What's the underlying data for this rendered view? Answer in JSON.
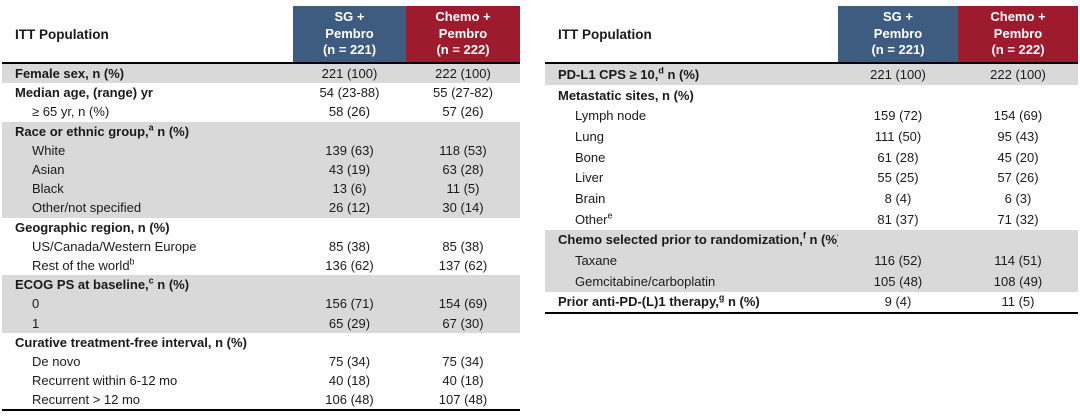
{
  "colors": {
    "header_blue": "#3D5C80",
    "header_red": "#9E1B2E",
    "row_shade": "#D9D9D9",
    "border_dark": "#000000",
    "text_dark": "#1A1A1A",
    "header_text": "#FFFFFF"
  },
  "tables": [
    {
      "name": "baseline-demographics",
      "corner_label": "ITT Population",
      "columns": [
        {
          "arm": "sg-pembro",
          "lines": [
            "SG +",
            "Pembro",
            "(n = 221)"
          ]
        },
        {
          "arm": "chemo-pembro",
          "lines": [
            "Chemo +",
            "Pembro",
            "(n = 222)"
          ]
        }
      ],
      "rows": [
        {
          "pre": "Female sex, n (%)",
          "sup": "",
          "post": "",
          "bold": true,
          "indent": false,
          "v1": "221 (100)",
          "v2": "222 (100)",
          "shade": true
        },
        {
          "pre": "Median age, (range) yr",
          "sup": "",
          "post": "",
          "bold": true,
          "indent": false,
          "v1": "54 (23-88)",
          "v2": "55 (27-82)",
          "shade": false
        },
        {
          "pre": "≥ 65 yr, n (%)",
          "sup": "",
          "post": "",
          "bold": false,
          "indent": true,
          "v1": "58 (26)",
          "v2": "57 (26)",
          "shade": false
        },
        {
          "pre": "Race or ethnic group,",
          "sup": "a",
          "post": " n (%)",
          "bold": true,
          "indent": false,
          "v1": "",
          "v2": "",
          "shade": true
        },
        {
          "pre": "White",
          "sup": "",
          "post": "",
          "bold": false,
          "indent": true,
          "v1": "139 (63)",
          "v2": "118 (53)",
          "shade": true
        },
        {
          "pre": "Asian",
          "sup": "",
          "post": "",
          "bold": false,
          "indent": true,
          "v1": "43 (19)",
          "v2": "63 (28)",
          "shade": true
        },
        {
          "pre": "Black",
          "sup": "",
          "post": "",
          "bold": false,
          "indent": true,
          "v1": "13 (6)",
          "v2": "11 (5)",
          "shade": true
        },
        {
          "pre": "Other/not specified",
          "sup": "",
          "post": "",
          "bold": false,
          "indent": true,
          "v1": "26 (12)",
          "v2": "30 (14)",
          "shade": true
        },
        {
          "pre": "Geographic region, n (%)",
          "sup": "",
          "post": "",
          "bold": true,
          "indent": false,
          "v1": "",
          "v2": "",
          "shade": false
        },
        {
          "pre": "US/Canada/Western Europe",
          "sup": "",
          "post": "",
          "bold": false,
          "indent": true,
          "v1": "85 (38)",
          "v2": "85 (38)",
          "shade": false
        },
        {
          "pre": "Rest of the world",
          "sup": "b",
          "post": "",
          "bold": false,
          "indent": true,
          "v1": "136 (62)",
          "v2": "137 (62)",
          "shade": false
        },
        {
          "pre": "ECOG PS at baseline,",
          "sup": "c",
          "post": " n (%)",
          "bold": true,
          "indent": false,
          "v1": "",
          "v2": "",
          "shade": true
        },
        {
          "pre": "0",
          "sup": "",
          "post": "",
          "bold": false,
          "indent": true,
          "v1": "156 (71)",
          "v2": "154 (69)",
          "shade": true
        },
        {
          "pre": "1",
          "sup": "",
          "post": "",
          "bold": false,
          "indent": true,
          "v1": "65 (29)",
          "v2": "67 (30)",
          "shade": true
        },
        {
          "pre": "Curative treatment-free interval, n (%)",
          "sup": "",
          "post": "",
          "bold": true,
          "indent": false,
          "v1": "",
          "v2": "",
          "shade": false
        },
        {
          "pre": "De novo",
          "sup": "",
          "post": "",
          "bold": false,
          "indent": true,
          "v1": "75 (34)",
          "v2": "75 (34)",
          "shade": false
        },
        {
          "pre": "Recurrent within 6-12 mo",
          "sup": "",
          "post": "",
          "bold": false,
          "indent": true,
          "v1": "40 (18)",
          "v2": "40 (18)",
          "shade": false
        },
        {
          "pre": "Recurrent > 12 mo",
          "sup": "",
          "post": "",
          "bold": false,
          "indent": true,
          "v1": "106 (48)",
          "v2": "107 (48)",
          "shade": false
        }
      ]
    },
    {
      "name": "baseline-disease-characteristics",
      "corner_label": "ITT Population",
      "columns": [
        {
          "arm": "sg-pembro",
          "lines": [
            "SG +",
            "Pembro",
            "(n = 221)"
          ]
        },
        {
          "arm": "chemo-pembro",
          "lines": [
            "Chemo +",
            "Pembro",
            "(n = 222)"
          ]
        }
      ],
      "rows": [
        {
          "pre": "PD-L1 CPS ≥ 10,",
          "sup": "d",
          "post": " n (%)",
          "bold": true,
          "indent": false,
          "v1": "221 (100)",
          "v2": "222 (100)",
          "shade": true
        },
        {
          "pre": "Metastatic sites, n (%)",
          "sup": "",
          "post": "",
          "bold": true,
          "indent": false,
          "v1": "",
          "v2": "",
          "shade": false
        },
        {
          "pre": "Lymph node",
          "sup": "",
          "post": "",
          "bold": false,
          "indent": true,
          "v1": "159 (72)",
          "v2": "154 (69)",
          "shade": false
        },
        {
          "pre": "Lung",
          "sup": "",
          "post": "",
          "bold": false,
          "indent": true,
          "v1": "111 (50)",
          "v2": "95 (43)",
          "shade": false
        },
        {
          "pre": "Bone",
          "sup": "",
          "post": "",
          "bold": false,
          "indent": true,
          "v1": "61 (28)",
          "v2": "45 (20)",
          "shade": false
        },
        {
          "pre": "Liver",
          "sup": "",
          "post": "",
          "bold": false,
          "indent": true,
          "v1": "55 (25)",
          "v2": "57 (26)",
          "shade": false
        },
        {
          "pre": "Brain",
          "sup": "",
          "post": "",
          "bold": false,
          "indent": true,
          "v1": "8 (4)",
          "v2": "6 (3)",
          "shade": false
        },
        {
          "pre": "Other",
          "sup": "e",
          "post": "",
          "bold": false,
          "indent": true,
          "v1": "81 (37)",
          "v2": "71 (32)",
          "shade": false
        },
        {
          "pre": "Chemo selected prior to randomization,",
          "sup": "f",
          "post": " n (%)",
          "bold": true,
          "indent": false,
          "v1": "",
          "v2": "",
          "shade": true
        },
        {
          "pre": "Taxane",
          "sup": "",
          "post": "",
          "bold": false,
          "indent": true,
          "v1": "116 (52)",
          "v2": "114 (51)",
          "shade": true
        },
        {
          "pre": "Gemcitabine/carboplatin",
          "sup": "",
          "post": "",
          "bold": false,
          "indent": true,
          "v1": "105 (48)",
          "v2": "108 (49)",
          "shade": true
        },
        {
          "pre": "Prior anti-PD-(L)1 therapy,",
          "sup": "g",
          "post": " n (%)",
          "bold": true,
          "indent": false,
          "v1": "9 (4)",
          "v2": "11 (5)",
          "shade": false
        }
      ]
    }
  ]
}
